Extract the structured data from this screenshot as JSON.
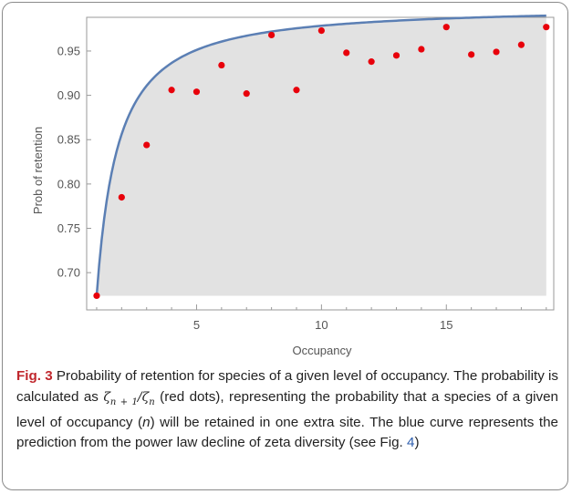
{
  "chart_data": {
    "type": "scatter",
    "title": "",
    "xlabel": "Occupancy",
    "ylabel": "Prob of retention",
    "xlim": [
      0.6,
      19.3
    ],
    "ylim": [
      0.658,
      0.988
    ],
    "x_ticks": [
      5,
      10,
      15
    ],
    "y_ticks": [
      0.7,
      0.75,
      0.8,
      0.85,
      0.9,
      0.95
    ],
    "x_tick_labels": [
      "5",
      "10",
      "15"
    ],
    "y_tick_labels": [
      "0.70",
      "0.75",
      "0.80",
      "0.85",
      "0.90",
      "0.95"
    ],
    "grid": false,
    "series": [
      {
        "kind": "scatter",
        "color": "#e8000b",
        "x": [
          1,
          2,
          3,
          4,
          5,
          6,
          7,
          8,
          9,
          10,
          11,
          12,
          13,
          14,
          15,
          16,
          17,
          18,
          19
        ],
        "y": [
          0.674,
          0.785,
          0.844,
          0.906,
          0.904,
          0.934,
          0.902,
          0.968,
          0.906,
          0.973,
          0.948,
          0.938,
          0.945,
          0.952,
          0.977,
          0.946,
          0.949,
          0.957,
          0.977
        ]
      },
      {
        "kind": "line",
        "color": "#5b7fb4",
        "fill": "#e2e2e2",
        "model": "power",
        "beta": 0.5,
        "x_start": 1,
        "x_end": 19
      }
    ]
  },
  "caption": {
    "fig_label": "Fig. 3",
    "text_1": " Probability of retention for species of a given level of occupancy. The probability is calculated as ",
    "zeta_1": "ζ",
    "sub_1": "n + 1",
    "slash": "/",
    "zeta_2": "ζ",
    "sub_2": "n",
    "text_2": " (red dots), representing the probability that a species of a given level of occupancy (",
    "n_var": "n",
    "text_3": ") will be retained in one extra site. The blue curve represents the prediction from the power law decline of zeta diversity (see Fig. ",
    "fig_ref": "4",
    "text_4": ")"
  }
}
